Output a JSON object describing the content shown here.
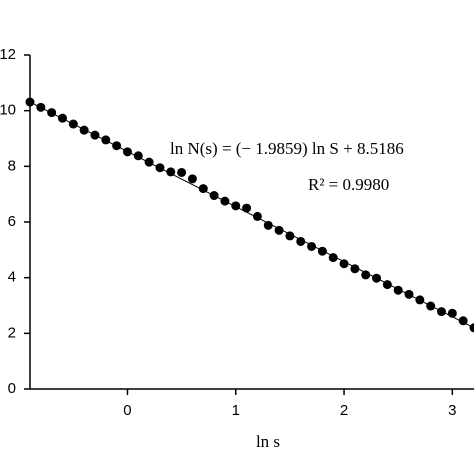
{
  "chart_data": {
    "type": "scatter",
    "x_label": "ln s",
    "annotations": [
      "ln N(s) = (− 1.9859) ln S + 8.5186",
      "R² = 0.9980"
    ],
    "x": [
      -0.9,
      -0.8,
      -0.7,
      -0.6,
      -0.5,
      -0.4,
      -0.3,
      -0.2,
      -0.1,
      0,
      0.1,
      0.2,
      0.3,
      0.4,
      0.5,
      0.6,
      0.7,
      0.8,
      0.9,
      1.0,
      1.1,
      1.2,
      1.3,
      1.4,
      1.5,
      1.6,
      1.7,
      1.8,
      1.9,
      2.0,
      2.1,
      2.2,
      2.3,
      2.4,
      2.5,
      2.6,
      2.7,
      2.8,
      2.9,
      3.0,
      3.1,
      3.2
    ],
    "values": [
      10.31,
      10.12,
      9.93,
      9.73,
      9.52,
      9.3,
      9.12,
      8.95,
      8.74,
      8.52,
      8.38,
      8.15,
      7.95,
      7.8,
      7.78,
      7.55,
      7.2,
      6.95,
      6.75,
      6.58,
      6.5,
      6.2,
      5.88,
      5.7,
      5.5,
      5.3,
      5.12,
      4.95,
      4.72,
      4.5,
      4.32,
      4.1,
      3.98,
      3.75,
      3.55,
      3.4,
      3.2,
      2.98,
      2.78,
      2.72,
      2.45,
      2.2
    ],
    "color": "#000000",
    "xlim": [
      -0.9,
      3.2
    ],
    "xticks": [
      0,
      1,
      2,
      3
    ],
    "ylim": [
      0,
      12
    ],
    "yticks": [
      0,
      2,
      4,
      6,
      8,
      10,
      12
    ]
  }
}
